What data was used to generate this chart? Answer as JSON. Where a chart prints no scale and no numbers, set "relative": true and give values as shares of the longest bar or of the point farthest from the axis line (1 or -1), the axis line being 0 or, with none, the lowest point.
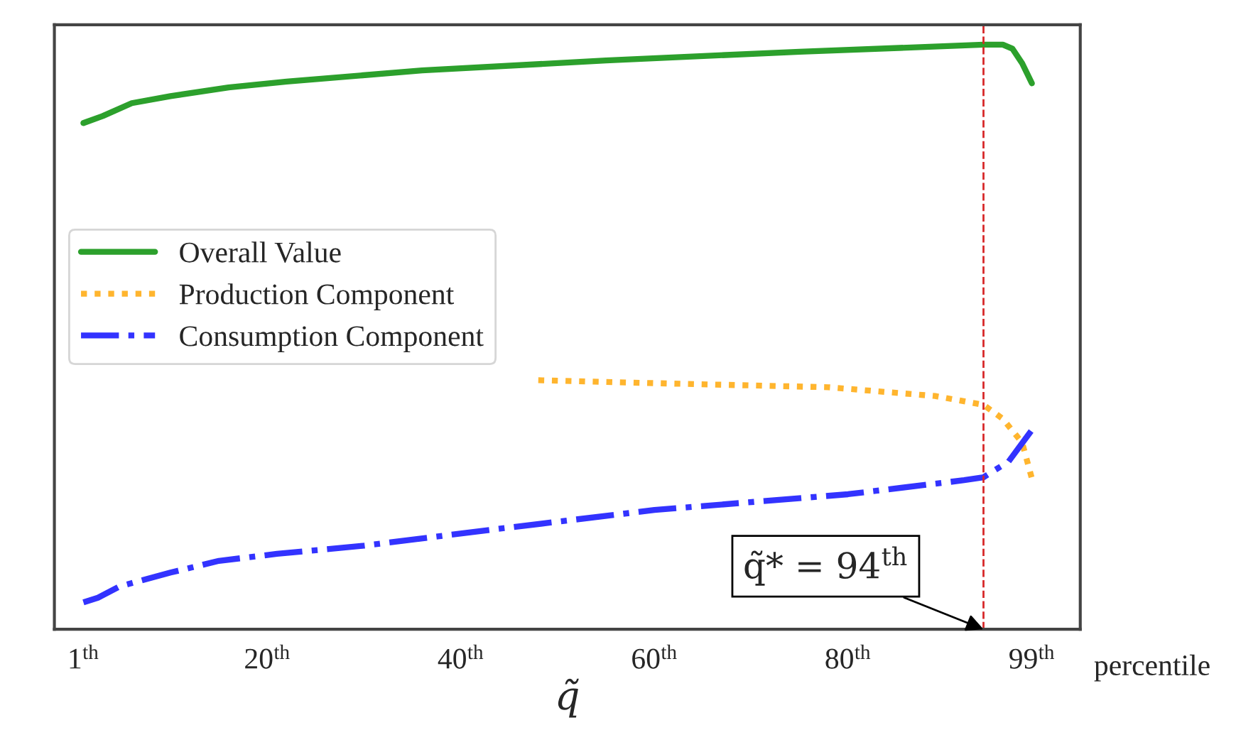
{
  "chart_data": {
    "type": "line",
    "relative": true,
    "xlabel": "q̃",
    "xlim": [
      -2,
      104
    ],
    "xticks": [
      {
        "value": 1,
        "label": "1$^{th}$"
      },
      {
        "value": 20,
        "label": "20$^{th}$"
      },
      {
        "value": 40,
        "label": "40$^{th}$"
      },
      {
        "value": 60,
        "label": "60$^{th}$"
      },
      {
        "value": 80,
        "label": "80$^{th}$"
      },
      {
        "value": 99,
        "label": "99$^{th}$"
      }
    ],
    "tick_labels": "x",
    "grid": false,
    "legend": "left",
    "series": [
      {
        "name": "Overall Value",
        "color": "#2ca02c",
        "line_style": "solid",
        "x": [
          1,
          3,
          6,
          10,
          16,
          22,
          36,
          55,
          75,
          94,
          96,
          97,
          98,
          99
        ],
        "values": [
          0.866,
          0.878,
          0.9,
          0.912,
          0.927,
          0.937,
          0.956,
          0.973,
          0.988,
          1.0,
          1.0,
          0.993,
          0.968,
          0.934
        ]
      },
      {
        "name": "Production Component",
        "color": "#ffb52e",
        "line_style": "dotted",
        "x": [
          48,
          60,
          78,
          89,
          94,
          96,
          98,
          99
        ],
        "values": [
          0.426,
          0.421,
          0.414,
          0.399,
          0.384,
          0.36,
          0.319,
          0.258
        ]
      },
      {
        "name": "Consumption Component",
        "color": "#3333ff",
        "line_style": "dashdot",
        "x": [
          1,
          2.5,
          4.7,
          10,
          15,
          21,
          30,
          43,
          60,
          80,
          92,
          94,
          96.6,
          99
        ],
        "values": [
          0.046,
          0.054,
          0.073,
          0.097,
          0.117,
          0.129,
          0.143,
          0.17,
          0.204,
          0.231,
          0.255,
          0.26,
          0.287,
          0.341
        ]
      }
    ],
    "ref_lines": [
      {
        "axis": "x",
        "value": 94,
        "color": "#d62728",
        "line_style": "dashed"
      }
    ],
    "annotations": [
      {
        "text": "q̃* = 94$^{th}$",
        "x": 94,
        "y": 0
      },
      "percentile"
    ]
  }
}
